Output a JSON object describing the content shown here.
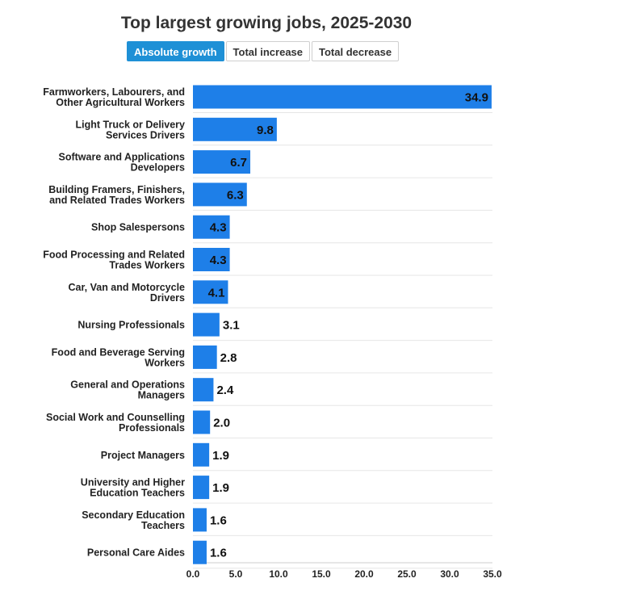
{
  "title": "Top largest growing jobs, 2025-2030",
  "tabs": [
    {
      "label": "Absolute growth",
      "active": true
    },
    {
      "label": "Total increase",
      "active": false
    },
    {
      "label": "Total decrease",
      "active": false
    }
  ],
  "colors": {
    "bar": "#1e7fe8",
    "grid": "#e6e6e6",
    "active_tab": "#1e90d6"
  },
  "chart_data": {
    "type": "bar",
    "orientation": "horizontal",
    "title": "Top largest growing jobs, 2025-2030",
    "categories": [
      [
        "Farmworkers, Labourers, and",
        "Other Agricultural Workers"
      ],
      [
        "Light Truck or Delivery",
        "Services Drivers"
      ],
      [
        "Software and Applications",
        "Developers"
      ],
      [
        "Building Framers, Finishers,",
        "and Related Trades Workers"
      ],
      [
        "Shop Salespersons"
      ],
      [
        "Food Processing and Related",
        "Trades Workers"
      ],
      [
        "Car, Van and Motorcycle",
        "Drivers"
      ],
      [
        "Nursing Professionals"
      ],
      [
        "Food and Beverage Serving",
        "Workers"
      ],
      [
        "General and Operations",
        "Managers"
      ],
      [
        "Social Work and Counselling",
        "Professionals"
      ],
      [
        "Project Managers"
      ],
      [
        "University and Higher",
        "Education Teachers"
      ],
      [
        "Secondary Education",
        "Teachers"
      ],
      [
        "Personal Care Aides"
      ]
    ],
    "values": [
      34.9,
      9.8,
      6.7,
      6.3,
      4.3,
      4.3,
      4.1,
      3.1,
      2.8,
      2.4,
      2.0,
      1.9,
      1.9,
      1.6,
      1.6
    ],
    "value_labels": [
      "34.9",
      "9.8",
      "6.7",
      "6.3",
      "4.3",
      "4.3",
      "4.1",
      "3.1",
      "2.8",
      "2.4",
      "2.0",
      "1.9",
      "1.9",
      "1.6",
      "1.6"
    ],
    "xlim": [
      0,
      35
    ],
    "xticks": [
      "0.0",
      "5.0",
      "10.0",
      "15.0",
      "20.0",
      "25.0",
      "30.0",
      "35.0"
    ],
    "xtick_values": [
      0,
      5,
      10,
      15,
      20,
      25,
      30,
      35
    ],
    "grid": true
  }
}
